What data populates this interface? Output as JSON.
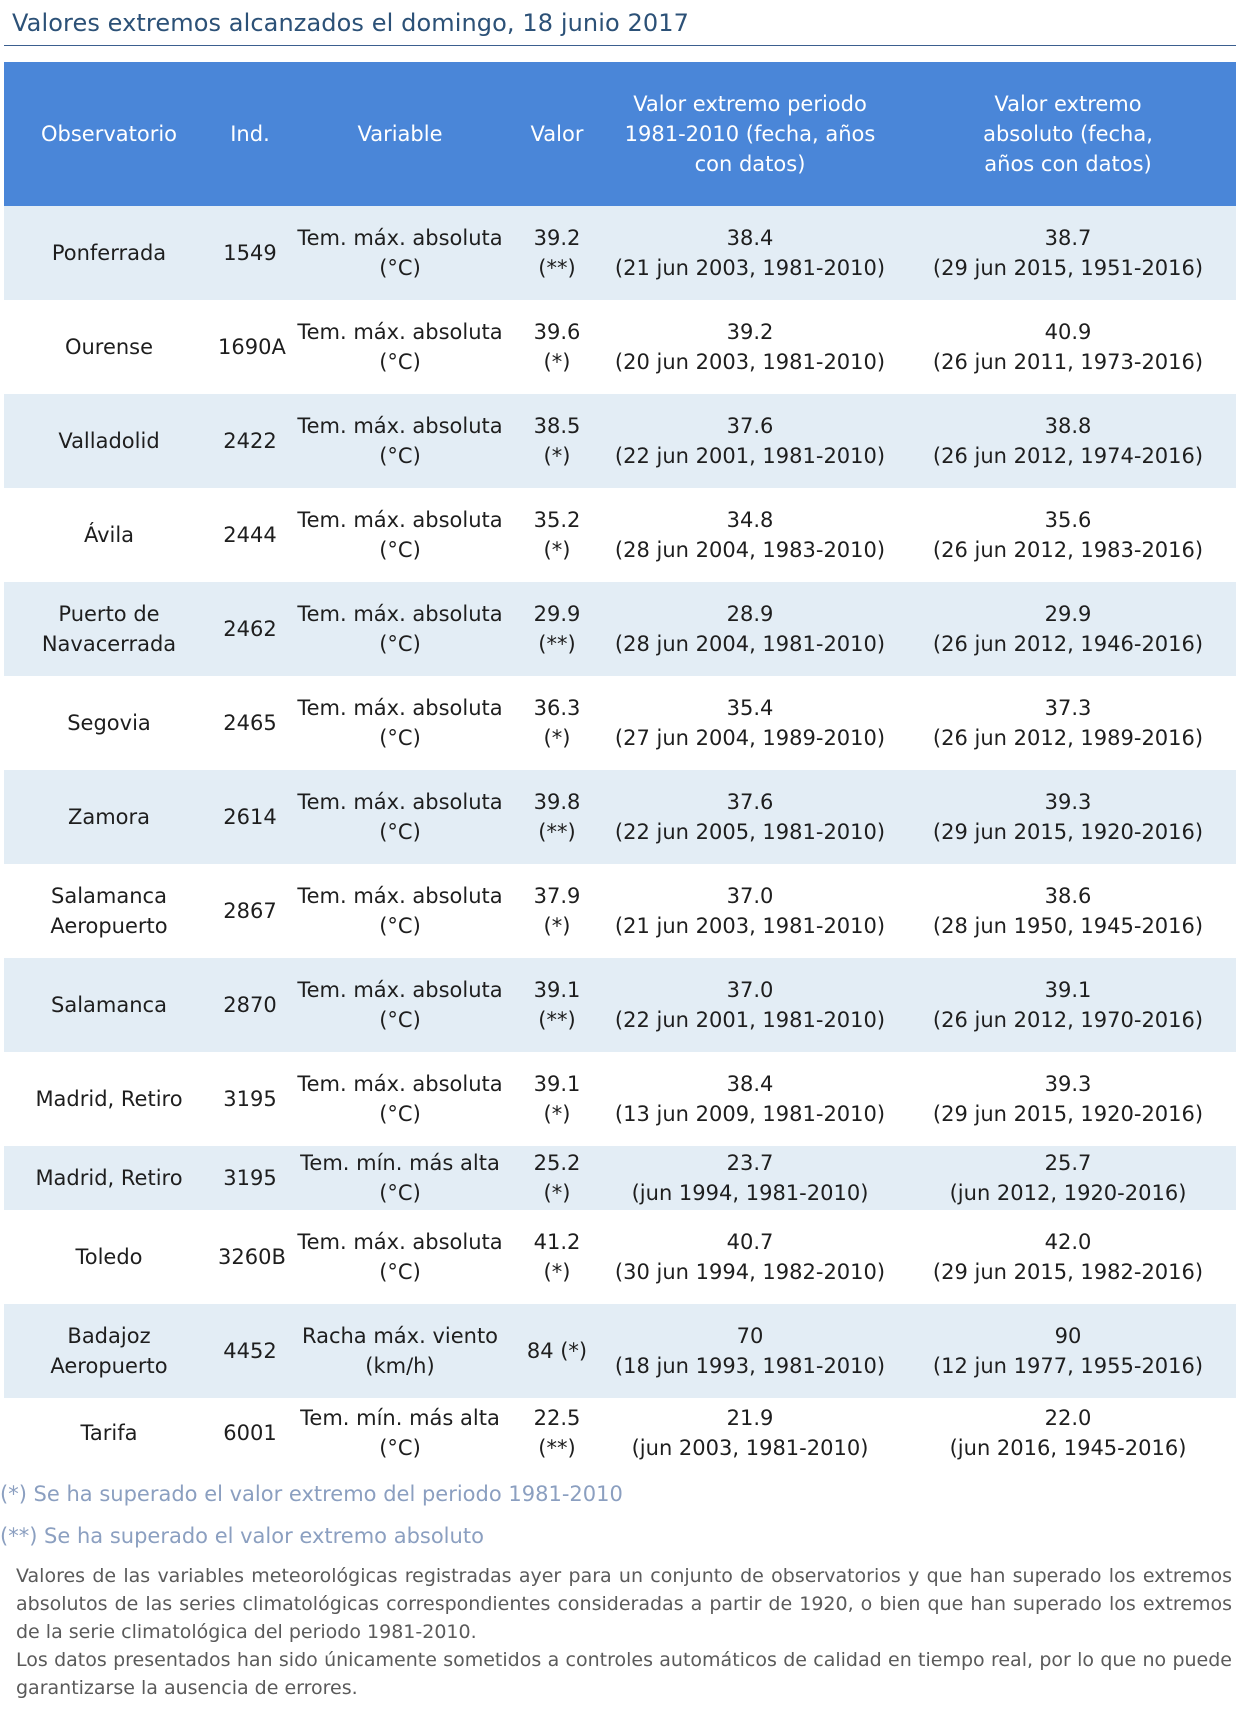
{
  "title": "Valores extremos alcanzados el domingo, 18 junio 2017",
  "table": {
    "headers": {
      "observatorio": "Observatorio",
      "ind": "Ind.",
      "variable": "Variable",
      "valor": "Valor",
      "periodo": "Valor extremo periodo 1981-2010 (fecha, años con datos)",
      "absoluto": "Valor extremo absoluto (fecha, años con datos)"
    },
    "rows": [
      {
        "obs": "Ponferrada",
        "ind": "1549",
        "variable": "Tem. máx. absoluta (°C)",
        "valor": "39.2 (**)",
        "periodo_val": "38.4",
        "periodo_info": "(21 jun 2003, 1981-2010)",
        "abs_val": "38.7",
        "abs_info": "(29 jun 2015, 1951-2016)"
      },
      {
        "obs": "Ourense",
        "ind": "1690A",
        "variable": "Tem. máx. absoluta (°C)",
        "valor": "39.6 (*)",
        "periodo_val": "39.2",
        "periodo_info": "(20 jun 2003, 1981-2010)",
        "abs_val": "40.9",
        "abs_info": "(26 jun 2011, 1973-2016)"
      },
      {
        "obs": "Valladolid",
        "ind": "2422",
        "variable": "Tem. máx. absoluta (°C)",
        "valor": "38.5 (*)",
        "periodo_val": "37.6",
        "periodo_info": "(22 jun 2001, 1981-2010)",
        "abs_val": "38.8",
        "abs_info": "(26 jun 2012, 1974-2016)"
      },
      {
        "obs": "Ávila",
        "ind": "2444",
        "variable": "Tem. máx. absoluta (°C)",
        "valor": "35.2 (*)",
        "periodo_val": "34.8",
        "periodo_info": "(28 jun 2004, 1983-2010)",
        "abs_val": "35.6",
        "abs_info": "(26 jun 2012, 1983-2016)"
      },
      {
        "obs": "Puerto de Navacerrada",
        "ind": "2462",
        "variable": "Tem. máx. absoluta (°C)",
        "valor": "29.9 (**)",
        "periodo_val": "28.9",
        "periodo_info": "(28 jun 2004, 1981-2010)",
        "abs_val": "29.9",
        "abs_info": "(26 jun 2012, 1946-2016)"
      },
      {
        "obs": "Segovia",
        "ind": "2465",
        "variable": "Tem. máx. absoluta (°C)",
        "valor": "36.3 (*)",
        "periodo_val": "35.4",
        "periodo_info": "(27 jun 2004, 1989-2010)",
        "abs_val": "37.3",
        "abs_info": "(26 jun 2012, 1989-2016)"
      },
      {
        "obs": "Zamora",
        "ind": "2614",
        "variable": "Tem. máx. absoluta (°C)",
        "valor": "39.8 (**)",
        "periodo_val": "37.6",
        "periodo_info": "(22 jun 2005, 1981-2010)",
        "abs_val": "39.3",
        "abs_info": "(29 jun 2015, 1920-2016)"
      },
      {
        "obs": "Salamanca Aeropuerto",
        "ind": "2867",
        "variable": "Tem. máx. absoluta (°C)",
        "valor": "37.9 (*)",
        "periodo_val": "37.0",
        "periodo_info": "(21 jun 2003, 1981-2010)",
        "abs_val": "38.6",
        "abs_info": "(28 jun 1950, 1945-2016)"
      },
      {
        "obs": "Salamanca",
        "ind": "2870",
        "variable": "Tem. máx. absoluta (°C)",
        "valor": "39.1 (**)",
        "periodo_val": "37.0",
        "periodo_info": "(22 jun 2001, 1981-2010)",
        "abs_val": "39.1",
        "abs_info": "(26 jun 2012, 1970-2016)"
      },
      {
        "obs": "Madrid, Retiro",
        "ind": "3195",
        "variable": "Tem. máx. absoluta (°C)",
        "valor": "39.1 (*)",
        "periodo_val": "38.4",
        "periodo_info": "(13 jun 2009, 1981-2010)",
        "abs_val": "39.3",
        "abs_info": "(29 jun 2015, 1920-2016)"
      },
      {
        "obs": "Madrid, Retiro",
        "ind": "3195",
        "variable": "Tem. mín. más alta (°C)",
        "valor": "25.2 (*)",
        "periodo_val": "23.7",
        "periodo_info": "(jun 1994, 1981-2010)",
        "abs_val": "25.7",
        "abs_info": "(jun 2012, 1920-2016)"
      },
      {
        "obs": "Toledo",
        "ind": "3260B",
        "variable": "Tem. máx. absoluta (°C)",
        "valor": "41.2 (*)",
        "periodo_val": "40.7",
        "periodo_info": "(30 jun 1994, 1982-2010)",
        "abs_val": "42.0",
        "abs_info": "(29 jun 2015, 1982-2016)"
      },
      {
        "obs": "Badajoz Aeropuerto",
        "ind": "4452",
        "variable": "Racha máx. viento (km/h)",
        "valor": "84 (*)",
        "periodo_val": "70",
        "periodo_info": "(18 jun 1993, 1981-2010)",
        "abs_val": "90",
        "abs_info": "(12 jun 1977, 1955-2016)"
      },
      {
        "obs": "Tarifa",
        "ind": "6001",
        "variable": "Tem. mín. más alta (°C)",
        "valor": "22.5 (**)",
        "periodo_val": "21.9",
        "periodo_info": "(jun 2003, 1981-2010)",
        "abs_val": "22.0",
        "abs_info": "(jun 2016, 1945-2016)"
      }
    ]
  },
  "notes": {
    "single": "(*) Se ha superado el valor extremo del periodo 1981-2010",
    "double": "(**) Se ha superado el valor extremo absoluto"
  },
  "description": {
    "p1": "Valores de las variables meteorológicas registradas ayer para un conjunto de observatorios y que han superado los extremos absolutos de las series climatológicas correspondientes consideradas a partir de 1920, o bien que han superado los extremos de la serie climatológica del periodo 1981-2010.",
    "p2": "Los datos presentados han sido únicamente sometidos a controles automáticos de calidad en tiempo real, por lo que no puede garantizarse la ausencia de errores."
  }
}
